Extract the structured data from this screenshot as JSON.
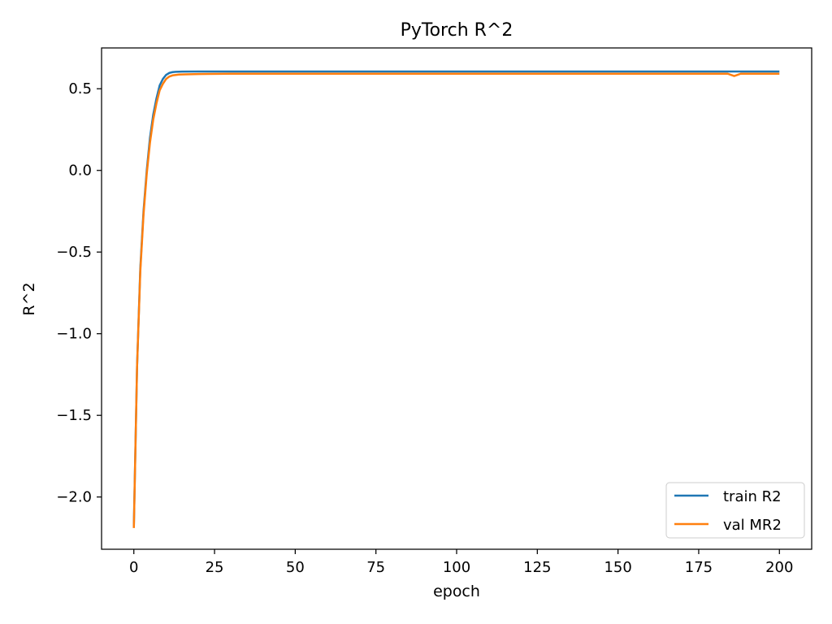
{
  "chart_data": {
    "type": "line",
    "title": "PyTorch R^2",
    "xlabel": "epoch",
    "ylabel": "R^2",
    "xlim": [
      -10,
      210
    ],
    "ylim": [
      -2.32,
      0.75
    ],
    "x_ticks": [
      0,
      25,
      50,
      75,
      100,
      125,
      150,
      175,
      200
    ],
    "y_ticks": [
      -2.0,
      -1.5,
      -1.0,
      -0.5,
      0.0,
      0.5
    ],
    "x_tick_labels": [
      "0",
      "25",
      "50",
      "75",
      "100",
      "125",
      "150",
      "175",
      "200"
    ],
    "y_tick_labels": [
      "−2.0",
      "−1.5",
      "−1.0",
      "−0.5",
      "0.0",
      "0.5"
    ],
    "grid": false,
    "legend_position": "lower-right",
    "series": [
      {
        "name": "train R2",
        "color": "#1f77b4",
        "points": [
          [
            0,
            -2.18
          ],
          [
            1,
            -1.2
          ],
          [
            2,
            -0.6
          ],
          [
            3,
            -0.25
          ],
          [
            4,
            0.0
          ],
          [
            5,
            0.2
          ],
          [
            6,
            0.34
          ],
          [
            7,
            0.44
          ],
          [
            8,
            0.52
          ],
          [
            9,
            0.56
          ],
          [
            10,
            0.585
          ],
          [
            11,
            0.597
          ],
          [
            12,
            0.602
          ],
          [
            13,
            0.604
          ],
          [
            15,
            0.605
          ],
          [
            20,
            0.606
          ],
          [
            30,
            0.606
          ],
          [
            50,
            0.606
          ],
          [
            75,
            0.606
          ],
          [
            100,
            0.606
          ],
          [
            125,
            0.606
          ],
          [
            150,
            0.606
          ],
          [
            175,
            0.606
          ],
          [
            200,
            0.606
          ]
        ]
      },
      {
        "name": "val MR2",
        "color": "#ff7f0e",
        "points": [
          [
            0,
            -2.19
          ],
          [
            1,
            -1.2
          ],
          [
            2,
            -0.62
          ],
          [
            3,
            -0.27
          ],
          [
            4,
            -0.02
          ],
          [
            5,
            0.17
          ],
          [
            6,
            0.31
          ],
          [
            7,
            0.41
          ],
          [
            8,
            0.49
          ],
          [
            9,
            0.53
          ],
          [
            10,
            0.56
          ],
          [
            11,
            0.575
          ],
          [
            12,
            0.582
          ],
          [
            14,
            0.587
          ],
          [
            16,
            0.588
          ],
          [
            20,
            0.59
          ],
          [
            30,
            0.592
          ],
          [
            50,
            0.592
          ],
          [
            75,
            0.592
          ],
          [
            100,
            0.592
          ],
          [
            125,
            0.592
          ],
          [
            150,
            0.592
          ],
          [
            175,
            0.592
          ],
          [
            184,
            0.592
          ],
          [
            185,
            0.585
          ],
          [
            186,
            0.578
          ],
          [
            187,
            0.585
          ],
          [
            188,
            0.592
          ],
          [
            200,
            0.592
          ]
        ]
      }
    ]
  }
}
